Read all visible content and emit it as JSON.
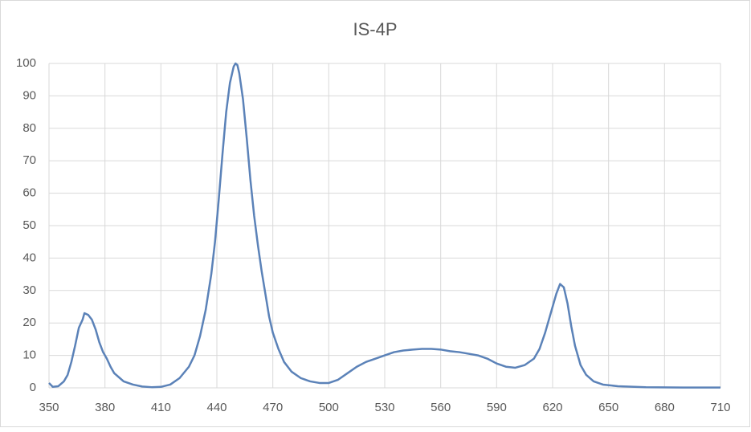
{
  "chart_data": {
    "type": "line",
    "title": "IS-4P",
    "x": [
      350,
      352,
      355,
      358,
      360,
      362,
      364,
      366,
      368,
      369,
      371,
      373,
      375,
      377,
      379,
      381,
      383,
      385,
      388,
      390,
      395,
      400,
      405,
      410,
      415,
      420,
      425,
      428,
      431,
      434,
      437,
      439,
      441,
      443,
      445,
      447,
      449,
      450,
      451,
      452,
      454,
      456,
      458,
      460,
      462,
      464,
      466,
      468,
      470,
      473,
      476,
      480,
      485,
      490,
      495,
      500,
      505,
      510,
      515,
      520,
      525,
      530,
      535,
      540,
      545,
      550,
      555,
      560,
      565,
      570,
      575,
      580,
      585,
      590,
      595,
      600,
      605,
      610,
      613,
      616,
      619,
      622,
      624,
      626,
      628,
      630,
      632,
      635,
      638,
      642,
      647,
      655,
      670,
      690,
      710
    ],
    "series": [
      {
        "name": "IS-4P",
        "color": "#5b82b8",
        "values": [
          1.5,
          0.3,
          0.5,
          2,
          4,
          8,
          13,
          18.5,
          21,
          23,
          22.5,
          21,
          18,
          14,
          11,
          9,
          6.5,
          4.5,
          3,
          2,
          1,
          0.4,
          0.2,
          0.3,
          1,
          3,
          6.5,
          10,
          16,
          24,
          35,
          45,
          58,
          72,
          85,
          94,
          99,
          100,
          99.5,
          97,
          89,
          77,
          64,
          53,
          44,
          36,
          29,
          22,
          17,
          12,
          8,
          5,
          3,
          2,
          1.5,
          1.5,
          2.5,
          4.5,
          6.5,
          8,
          9,
          10,
          11,
          11.5,
          11.8,
          12,
          12,
          11.8,
          11.3,
          11,
          10.5,
          10,
          9,
          7.5,
          6.5,
          6.2,
          7,
          9,
          12,
          17,
          23,
          29,
          32,
          31,
          26,
          19,
          13,
          7,
          4,
          2,
          1,
          0.5,
          0.2,
          0.1,
          0.1
        ]
      }
    ],
    "xlim": [
      350,
      710
    ],
    "xticks": [
      350,
      380,
      410,
      440,
      470,
      500,
      530,
      560,
      590,
      620,
      650,
      680,
      710
    ],
    "ylim": [
      0,
      100
    ],
    "yticks": [
      0,
      10,
      20,
      30,
      40,
      50,
      60,
      70,
      80,
      90,
      100
    ],
    "grid": true
  }
}
